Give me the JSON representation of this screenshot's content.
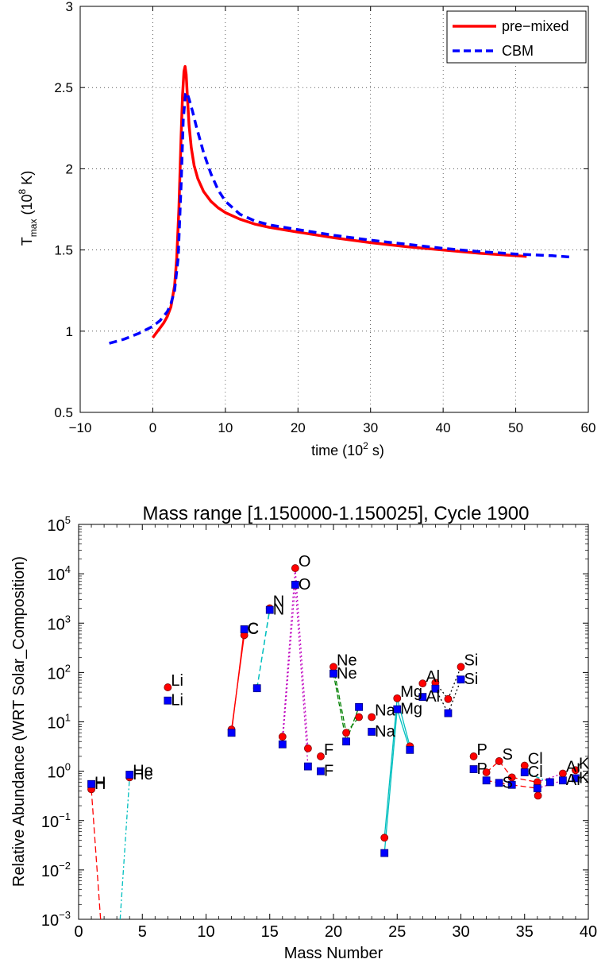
{
  "chart_data": [
    {
      "type": "line",
      "xlabel": "time (10",
      "xlabel_sup": "2",
      "xlabel_end": " s)",
      "ylabel_main": "T",
      "ylabel_sub": "max",
      "ylabel_mid": " (10",
      "ylabel_sup": "8",
      "ylabel_end": " K)",
      "xlim": [
        -10,
        60
      ],
      "ylim": [
        0.5,
        3
      ],
      "xticks": [
        -10,
        0,
        10,
        20,
        30,
        40,
        50,
        60
      ],
      "yticks": [
        0.5,
        1,
        1.5,
        2,
        2.5,
        3
      ],
      "xtick_labels": [
        "−10",
        "0",
        "10",
        "20",
        "30",
        "40",
        "50",
        "60"
      ],
      "ytick_labels": [
        "0.5",
        "1",
        "1.5",
        "2",
        "2.5",
        "3"
      ],
      "grid": true,
      "legend_position": "top-right",
      "series": [
        {
          "name": "pre−mixed",
          "color": "#ff0000",
          "style": "solid",
          "x": [
            0,
            0.5,
            1,
            1.5,
            2,
            2.5,
            3,
            3.3,
            3.6,
            3.9,
            4.1,
            4.3,
            4.45,
            4.6,
            4.8,
            5,
            5.3,
            5.7,
            6.2,
            7,
            8,
            9,
            10,
            12,
            14,
            16,
            20,
            25,
            30,
            35,
            40,
            45,
            50,
            51.5
          ],
          "y": [
            0.96,
            0.99,
            1.02,
            1.05,
            1.09,
            1.15,
            1.28,
            1.45,
            1.75,
            2.2,
            2.45,
            2.6,
            2.63,
            2.58,
            2.42,
            2.27,
            2.13,
            2.02,
            1.94,
            1.86,
            1.8,
            1.76,
            1.73,
            1.69,
            1.66,
            1.64,
            1.61,
            1.575,
            1.545,
            1.52,
            1.5,
            1.48,
            1.465,
            1.46
          ]
        },
        {
          "name": "CBM",
          "color": "#0000ff",
          "style": "dashed",
          "x": [
            -6,
            -4,
            -2,
            0,
            1,
            2,
            2.5,
            3,
            3.5,
            3.9,
            4.2,
            4.5,
            4.7,
            5,
            5.5,
            6,
            7,
            8,
            9,
            10,
            12,
            14,
            16,
            20,
            25,
            30,
            35,
            40,
            45,
            50,
            55,
            58
          ],
          "y": [
            0.925,
            0.95,
            0.985,
            1.03,
            1.065,
            1.12,
            1.17,
            1.25,
            1.45,
            1.9,
            2.3,
            2.46,
            2.47,
            2.43,
            2.35,
            2.26,
            2.1,
            1.97,
            1.87,
            1.8,
            1.72,
            1.68,
            1.655,
            1.625,
            1.59,
            1.56,
            1.535,
            1.51,
            1.49,
            1.475,
            1.465,
            1.455
          ]
        }
      ]
    },
    {
      "type": "scatter",
      "title": "Mass range [1.150000-1.150025], Cycle 1900",
      "xlabel": "Mass Number",
      "ylabel": "Relative Abundance (WRT Solar_Composition)",
      "xlim": [
        0,
        40
      ],
      "ylim_log10": [
        -3,
        5
      ],
      "yscale": "log",
      "xticks": [
        0,
        5,
        10,
        15,
        20,
        25,
        30,
        35,
        40
      ],
      "ytick_exponents": [
        -3,
        -2,
        -1,
        0,
        1,
        2,
        3,
        4,
        5
      ],
      "ytick_base": "10",
      "grid": false,
      "series": [
        {
          "marker": "circle",
          "color": "#ff0000",
          "points": [
            {
              "x": 1,
              "y": 0.43,
              "label": "H"
            },
            {
              "x": 2,
              "y": 0.0001
            },
            {
              "x": 3,
              "y": 0.0001
            },
            {
              "x": 4,
              "y": 0.75,
              "label": "He"
            },
            {
              "x": 7,
              "y": 50,
              "label": "Li"
            },
            {
              "x": 12,
              "y": 7
            },
            {
              "x": 13,
              "y": 570,
              "label": "C"
            },
            {
              "x": 14,
              "y": 48
            },
            {
              "x": 15,
              "y": 2000,
              "label": "N"
            },
            {
              "x": 16,
              "y": 5
            },
            {
              "x": 17,
              "y": 13000,
              "label": "O"
            },
            {
              "x": 18,
              "y": 2.9
            },
            {
              "x": 19,
              "y": 2,
              "label": "F"
            },
            {
              "x": 20,
              "y": 130,
              "label": "Ne"
            },
            {
              "x": 21,
              "y": 6
            },
            {
              "x": 22,
              "y": 12.5
            },
            {
              "x": 23,
              "y": 12.5,
              "label": "Na"
            },
            {
              "x": 24,
              "y": 0.045
            },
            {
              "x": 25,
              "y": 30,
              "label": "Mg"
            },
            {
              "x": 26,
              "y": 3.2
            },
            {
              "x": 27,
              "y": 60,
              "label": "Al"
            },
            {
              "x": 28,
              "y": 62
            },
            {
              "x": 29,
              "y": 29
            },
            {
              "x": 30,
              "y": 130,
              "label": "Si"
            },
            {
              "x": 31,
              "y": 2,
              "label": "P"
            },
            {
              "x": 32,
              "y": 0.95
            },
            {
              "x": 33,
              "y": 1.6,
              "label": "S"
            },
            {
              "x": 34,
              "y": 0.75
            },
            {
              "x": 35,
              "y": 1.3,
              "label": "Cl"
            },
            {
              "x": 36,
              "y": 0.6
            },
            {
              "x": 36.05,
              "y": 0.32
            },
            {
              "x": 38,
              "y": 0.9,
              "label": "Ar"
            },
            {
              "x": 39,
              "y": 1.05,
              "label": "K"
            }
          ]
        },
        {
          "marker": "square",
          "color": "#0000ff",
          "points": [
            {
              "x": 1,
              "y": 0.55,
              "label": "H"
            },
            {
              "x": 4,
              "y": 0.85,
              "label": "He"
            },
            {
              "x": 7,
              "y": 27,
              "label": "Li"
            },
            {
              "x": 12,
              "y": 6
            },
            {
              "x": 13,
              "y": 750,
              "label": "C"
            },
            {
              "x": 14,
              "y": 48
            },
            {
              "x": 15,
              "y": 1850,
              "label": "N"
            },
            {
              "x": 16,
              "y": 3.5
            },
            {
              "x": 17,
              "y": 6000,
              "label": "O"
            },
            {
              "x": 18,
              "y": 1.25
            },
            {
              "x": 19,
              "y": 1,
              "label": "F"
            },
            {
              "x": 20,
              "y": 95,
              "label": "Ne"
            },
            {
              "x": 21,
              "y": 4
            },
            {
              "x": 22,
              "y": 20
            },
            {
              "x": 23,
              "y": 6.3,
              "label": "Na"
            },
            {
              "x": 24,
              "y": 0.022
            },
            {
              "x": 25,
              "y": 18,
              "label": "Mg"
            },
            {
              "x": 26,
              "y": 2.7
            },
            {
              "x": 27,
              "y": 32,
              "label": "Al"
            },
            {
              "x": 28,
              "y": 47
            },
            {
              "x": 29,
              "y": 15
            },
            {
              "x": 30,
              "y": 72,
              "label": "Si"
            },
            {
              "x": 31,
              "y": 1.1,
              "label": "P"
            },
            {
              "x": 32,
              "y": 0.65
            },
            {
              "x": 33,
              "y": 0.58,
              "label": "S"
            },
            {
              "x": 34,
              "y": 0.53
            },
            {
              "x": 35,
              "y": 0.95,
              "label": "Cl"
            },
            {
              "x": 36,
              "y": 0.45
            },
            {
              "x": 37,
              "y": 0.6
            },
            {
              "x": 38,
              "y": 0.65,
              "label": "Ar"
            },
            {
              "x": 39,
              "y": 0.72,
              "label": "K"
            }
          ]
        }
      ]
    }
  ]
}
